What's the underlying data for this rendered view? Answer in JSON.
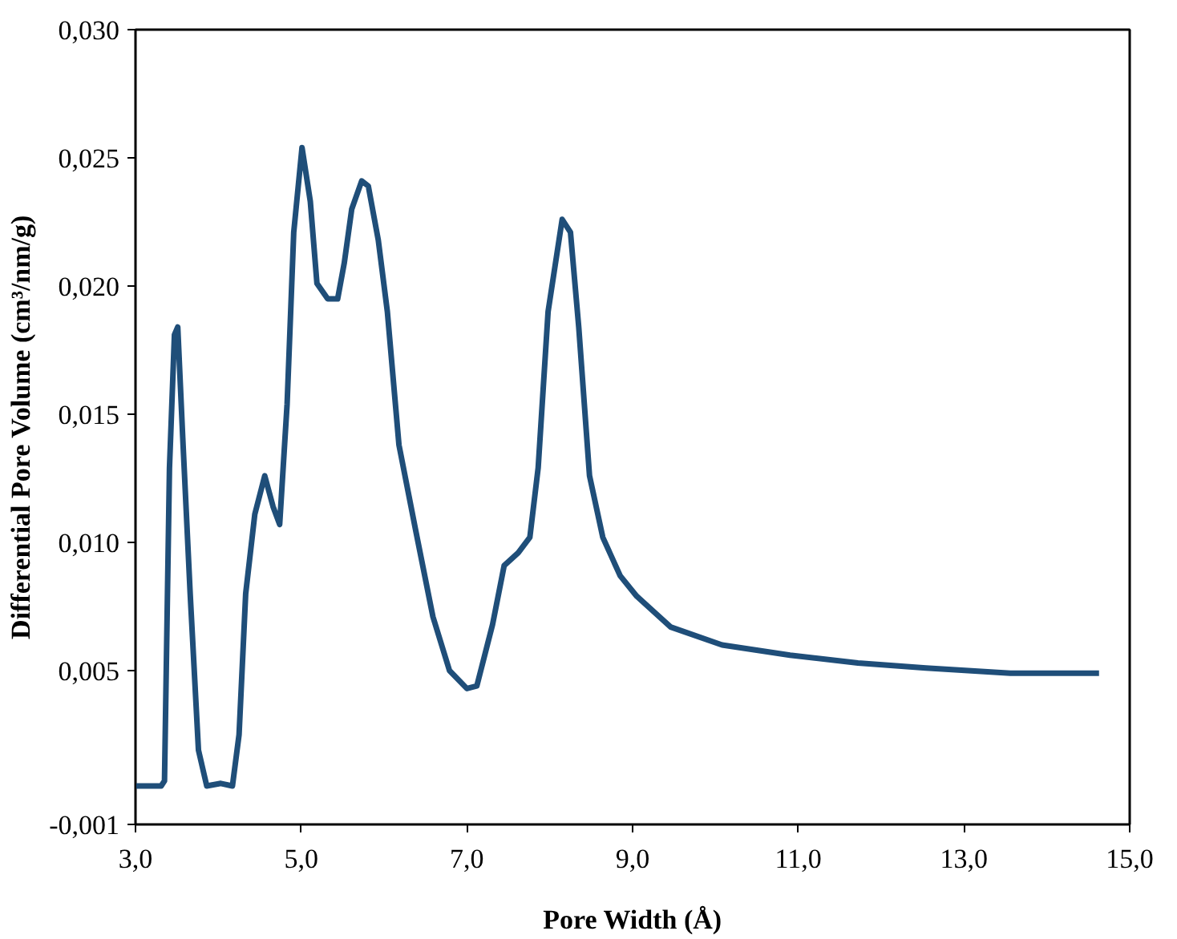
{
  "chart_data": {
    "type": "line",
    "xlabel": "Pore Width (Å)",
    "ylabel": "Differential Pore Volume (cm³/nm/g)",
    "xlim": [
      3,
      15
    ],
    "ylim": [
      -0.001,
      0.03
    ],
    "xticks": [
      {
        "value": 3,
        "label": "3,0"
      },
      {
        "value": 5,
        "label": "5,0"
      },
      {
        "value": 7,
        "label": "7,0"
      },
      {
        "value": 9,
        "label": "9,0"
      },
      {
        "value": 11,
        "label": "11,0"
      },
      {
        "value": 13,
        "label": "13,0"
      },
      {
        "value": 15,
        "label": "15,0"
      }
    ],
    "yticks": [
      {
        "value": -0.001,
        "label": "-0,001"
      },
      {
        "value": 0.005,
        "label": "0,005"
      },
      {
        "value": 0.01,
        "label": "0,010"
      },
      {
        "value": 0.015,
        "label": "0,015"
      },
      {
        "value": 0.02,
        "label": "0,020"
      },
      {
        "value": 0.025,
        "label": "0,025"
      },
      {
        "value": 0.03,
        "label": "0,030"
      }
    ],
    "grid": false,
    "marker": "none",
    "line_style": "solid",
    "series": [
      {
        "color": "#1f4e79",
        "x": [
          3.0,
          3.31,
          3.35,
          3.41,
          3.47,
          3.51,
          3.57,
          3.66,
          3.76,
          3.86,
          4.03,
          4.17,
          4.25,
          4.33,
          4.44,
          4.56,
          4.66,
          4.74,
          4.83,
          4.91,
          5.01,
          5.11,
          5.19,
          5.32,
          5.44,
          5.52,
          5.61,
          5.73,
          5.81,
          5.93,
          6.04,
          6.18,
          6.38,
          6.59,
          6.79,
          7.0,
          7.12,
          7.31,
          7.45,
          7.62,
          7.76,
          7.86,
          7.98,
          8.15,
          8.25,
          8.35,
          8.48,
          8.64,
          8.85,
          9.05,
          9.46,
          10.08,
          10.9,
          11.72,
          12.54,
          13.56,
          14.63
        ],
        "values": [
          0.0005,
          0.0005,
          0.0007,
          0.0129,
          0.0181,
          0.0184,
          0.0141,
          0.008,
          0.0019,
          0.0005,
          0.0006,
          0.0005,
          0.0025,
          0.008,
          0.0111,
          0.0126,
          0.0114,
          0.0107,
          0.0154,
          0.0221,
          0.0254,
          0.0233,
          0.0201,
          0.0195,
          0.0195,
          0.0209,
          0.023,
          0.0241,
          0.0239,
          0.0218,
          0.019,
          0.0138,
          0.0105,
          0.0071,
          0.005,
          0.0043,
          0.0044,
          0.0068,
          0.0091,
          0.0096,
          0.0102,
          0.0129,
          0.019,
          0.0226,
          0.0221,
          0.0184,
          0.0126,
          0.0102,
          0.0087,
          0.0079,
          0.0067,
          0.006,
          0.0056,
          0.0053,
          0.0051,
          0.0049,
          0.0049
        ]
      }
    ]
  }
}
